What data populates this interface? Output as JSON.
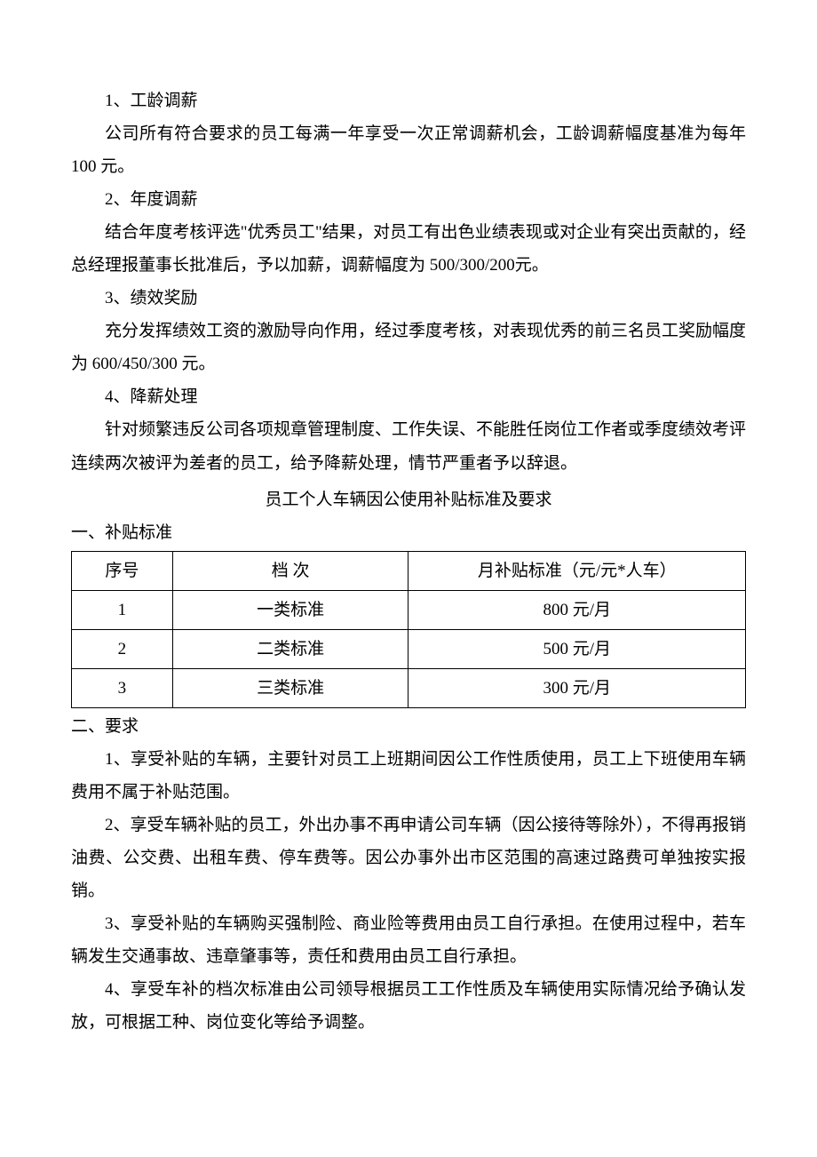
{
  "items": {
    "i1": {
      "label": "1、工龄调薪"
    },
    "i1_body": "公司所有符合要求的员工每满一年享受一次正常调薪机会，工龄调薪幅度基准为每年 100 元。",
    "i2": {
      "label": "2、年度调薪"
    },
    "i2_body": "结合年度考核评选\"优秀员工\"结果，对员工有出色业绩表现或对企业有突出贡献的，经总经理报董事长批准后，予以加薪，调薪幅度为 500/300/200元。",
    "i3": {
      "label": "3、绩效奖励"
    },
    "i3_body": "充分发挥绩效工资的激励导向作用，经过季度考核，对表现优秀的前三名员工奖励幅度为 600/450/300  元。",
    "i4": {
      "label": "4、降薪处理"
    },
    "i4_body": "针对频繁违反公司各项规章管理制度、工作失误、不能胜任岗位工作者或季度绩效考评连续两次被评为差者的员工，给予降薪处理，情节严重者予以辞退。"
  },
  "subsidy": {
    "title": "员工个人车辆因公使用补贴标准及要求",
    "section1": "一、补贴标准",
    "section2": "二、要求",
    "table": {
      "headers": [
        "序号",
        "档 次",
        "月补贴标准（元/元*人车）"
      ],
      "rows": [
        {
          "no": "1",
          "level": "一类标准",
          "amount": "800 元/月"
        },
        {
          "no": "2",
          "level": "二类标准",
          "amount": "500 元/月"
        },
        {
          "no": "3",
          "level": "三类标准",
          "amount": "300 元/月"
        }
      ]
    },
    "req1": "1、享受补贴的车辆，主要针对员工上班期间因公工作性质使用，员工上下班使用车辆费用不属于补贴范围。",
    "req2": "2、享受车辆补贴的员工，外出办事不再申请公司车辆（因公接待等除外），不得再报销油费、公交费、出租车费、停车费等。因公办事外出市区范围的高速过路费可单独按实报销。",
    "req3": "3、享受补贴的车辆购买强制险、商业险等费用由员工自行承担。在使用过程中，若车辆发生交通事故、违章肇事等，责任和费用由员工自行承担。",
    "req4": "4、享受车补的档次标准由公司领导根据员工工作性质及车辆使用实际情况给予确认发放，可根据工种、岗位变化等给予调整。"
  }
}
